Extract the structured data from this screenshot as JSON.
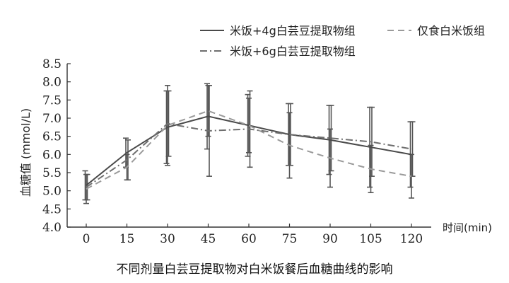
{
  "chart_data": {
    "type": "line",
    "x": [
      0,
      15,
      30,
      45,
      60,
      75,
      90,
      105,
      120
    ],
    "xlabel": "时间(min)",
    "ylabel": "血糖值 (mmol/L)",
    "ylim": [
      4.0,
      8.5
    ],
    "yticks": [
      "4.0",
      "4.5",
      "5.0",
      "5.5",
      "6.0",
      "6.5",
      "7.0",
      "7.5",
      "8.0",
      "8.5"
    ],
    "xticks": [
      "0",
      "15",
      "30",
      "45",
      "60",
      "75",
      "90",
      "105",
      "120"
    ],
    "grid": false,
    "legend_position": "top-right",
    "series": [
      {
        "name": "米饭+4g白芸豆提取物组",
        "style": "solid",
        "values": [
          5.15,
          6.05,
          6.75,
          7.05,
          6.8,
          6.55,
          6.4,
          6.2,
          6.0
        ],
        "err": [
          0.4,
          0.4,
          1.0,
          0.9,
          0.85,
          0.85,
          0.95,
          1.1,
          0.9
        ]
      },
      {
        "name": "仅食白米饭组",
        "style": "dashed",
        "values": [
          5.05,
          5.65,
          6.8,
          7.2,
          6.8,
          6.25,
          5.9,
          5.6,
          5.4
        ],
        "err": [
          0.4,
          0.35,
          1.1,
          0.7,
          0.75,
          0.9,
          0.8,
          0.65,
          0.6
        ]
      },
      {
        "name": "米饭+6g白芸豆提取物组",
        "style": "dashdot",
        "values": [
          5.1,
          5.85,
          6.85,
          6.65,
          6.7,
          6.55,
          6.45,
          6.35,
          6.15
        ],
        "err": [
          0.35,
          0.55,
          0.9,
          1.25,
          1.05,
          0.85,
          0.9,
          0.95,
          0.75
        ]
      }
    ],
    "colors": {
      "solid": "#4a4a4a",
      "dashed": "#9a9a9a",
      "dashdot": "#6e6e6e",
      "axis": "#333333"
    }
  },
  "caption": "不同剂量白芸豆提取物对白米饭餐后血糖曲线的影响"
}
